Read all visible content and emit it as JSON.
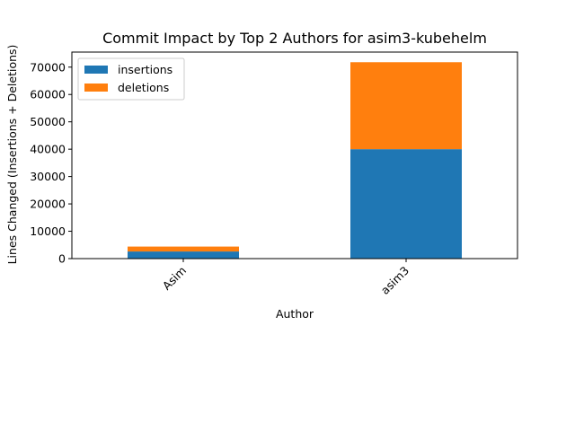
{
  "chart_data": {
    "type": "bar",
    "stacked": true,
    "title": "Commit Impact by Top 2 Authors for asim3-kubehelm",
    "xlabel": "Author",
    "ylabel": "Lines Changed (Insertions + Deletions)",
    "categories": [
      "Asim",
      "asim3"
    ],
    "series": [
      {
        "name": "insertions",
        "values": [
          2600,
          40000
        ],
        "color": "#1f77b4"
      },
      {
        "name": "deletions",
        "values": [
          1800,
          31800
        ],
        "color": "#ff7f0e"
      }
    ],
    "ylim": [
      0,
      75500
    ],
    "yticks": [
      0,
      10000,
      20000,
      30000,
      40000,
      50000,
      60000,
      70000
    ],
    "ytick_labels": [
      "0",
      "10000",
      "20000",
      "30000",
      "40000",
      "50000",
      "60000",
      "70000"
    ],
    "xtick_rotation": 45,
    "legend": {
      "position": "top-left",
      "entries": [
        "insertions",
        "deletions"
      ]
    },
    "grid": false
  }
}
